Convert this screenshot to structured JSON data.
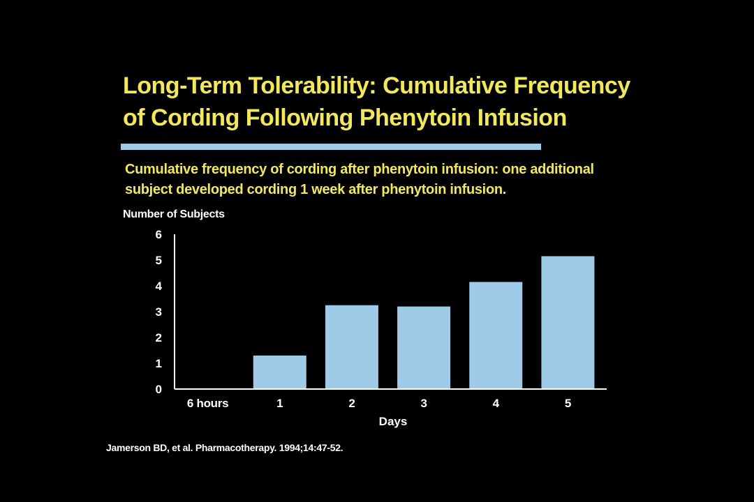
{
  "slide": {
    "title_lines": [
      "Long-Term Tolerability: Cumulative Frequency",
      "of Cording Following Phenytoin Infusion"
    ],
    "subtitle_lines": [
      "Cumulative frequency of cording after phenytoin infusion: one additional",
      "subject developed cording 1 week after phenytoin infusion."
    ],
    "citation": "Jamerson BD, et al. Pharmacotherapy. 1994;14:47-52.",
    "colors": {
      "background": "#000000",
      "title": "#f2e85c",
      "bar": "#9fcbe9",
      "axis": "#ffffff"
    }
  },
  "chart_data": {
    "type": "bar",
    "title": "",
    "ylabel": "Number of Subjects",
    "xlabel": "Days",
    "categories": [
      "6 hours",
      "1",
      "2",
      "3",
      "4",
      "5"
    ],
    "values": [
      0,
      1.3,
      3.25,
      3.2,
      4.15,
      5.15
    ],
    "ylim": [
      0,
      6
    ],
    "yticks": [
      0,
      1,
      2,
      3,
      4,
      5,
      6
    ],
    "grid": false,
    "legend": "none"
  }
}
